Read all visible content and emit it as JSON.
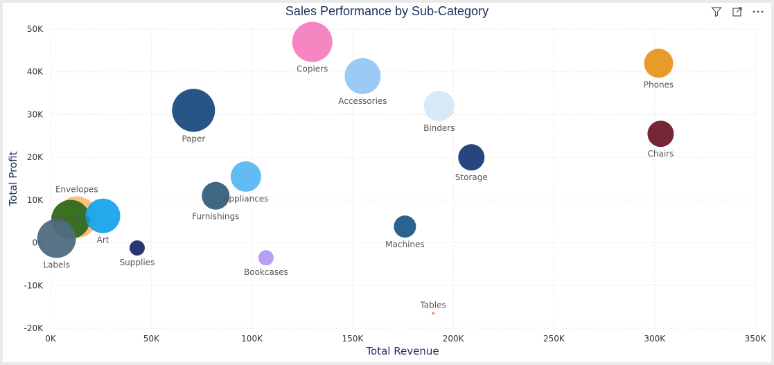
{
  "header": {
    "title": "Sales Performance by Sub-Category",
    "icons": [
      "filter-icon",
      "focus-mode-icon",
      "more-options-icon"
    ]
  },
  "chart_data": {
    "type": "scatter",
    "title": "Sales Performance by Sub-Category",
    "xlabel": "Total Revenue",
    "ylabel": "Total Profit",
    "xlim": [
      0,
      350000
    ],
    "ylim": [
      -20000,
      50000
    ],
    "xticks": [
      {
        "value": 0,
        "label": "0K"
      },
      {
        "value": 50000,
        "label": "50K"
      },
      {
        "value": 100000,
        "label": "100K"
      },
      {
        "value": 150000,
        "label": "150K"
      },
      {
        "value": 200000,
        "label": "200K"
      },
      {
        "value": 250000,
        "label": "250K"
      },
      {
        "value": 300000,
        "label": "300K"
      },
      {
        "value": 350000,
        "label": "350K"
      }
    ],
    "yticks": [
      {
        "value": 50000,
        "label": "50K"
      },
      {
        "value": 40000,
        "label": "40K"
      },
      {
        "value": 30000,
        "label": "30K"
      },
      {
        "value": 20000,
        "label": "20K"
      },
      {
        "value": 10000,
        "label": "10K"
      },
      {
        "value": 0,
        "label": "0K"
      },
      {
        "value": -10000,
        "label": "-10K"
      },
      {
        "value": -20000,
        "label": "-20K"
      }
    ],
    "grid": true,
    "legend": "none",
    "points": [
      {
        "name": "Copiers",
        "x": 130000,
        "y": 47000,
        "size": 29,
        "color": "#f47fbf",
        "label_pos": "below"
      },
      {
        "name": "Phones",
        "x": 302000,
        "y": 42000,
        "size": 21,
        "color": "#e8961f",
        "label_pos": "below"
      },
      {
        "name": "Accessories",
        "x": 155000,
        "y": 39000,
        "size": 26,
        "color": "#93c8f3",
        "label_pos": "below"
      },
      {
        "name": "Binders",
        "x": 193000,
        "y": 32000,
        "size": 22,
        "color": "#d6e8f8",
        "label_pos": "below"
      },
      {
        "name": "Paper",
        "x": 71000,
        "y": 31000,
        "size": 31,
        "color": "#1a4c80",
        "label_pos": "below"
      },
      {
        "name": "Chairs",
        "x": 303000,
        "y": 25500,
        "size": 19,
        "color": "#6b1b2d",
        "label_pos": "below"
      },
      {
        "name": "Storage",
        "x": 209000,
        "y": 20000,
        "size": 19,
        "color": "#1e3a78",
        "label_pos": "below"
      },
      {
        "name": "Appliances",
        "x": 97000,
        "y": 15500,
        "size": 22,
        "color": "#5ab8f2",
        "label_pos": "below"
      },
      {
        "name": "Furnishings",
        "x": 82000,
        "y": 11000,
        "size": 20,
        "color": "#365f7d",
        "label_pos": "below"
      },
      {
        "name": "Envelopes",
        "x": 13000,
        "y": 6000,
        "size": 30,
        "color": "#fbbc75",
        "label_pos": "above"
      },
      {
        "name": "Fasteners",
        "x": 10000,
        "y": 5500,
        "size": 28,
        "color": "#2e6b1d",
        "label_pos": "center"
      },
      {
        "name": "Art",
        "x": 26000,
        "y": 6300,
        "size": 25,
        "color": "#18a5eb",
        "label_pos": "below"
      },
      {
        "name": "Machines",
        "x": 176000,
        "y": 3800,
        "size": 16,
        "color": "#215a87",
        "label_pos": "below"
      },
      {
        "name": "Labels",
        "x": 3000,
        "y": 1000,
        "size": 28,
        "color": "#4f6b80",
        "label_pos": "below"
      },
      {
        "name": "Supplies",
        "x": 43000,
        "y": -1200,
        "size": 11,
        "color": "#1e2b68",
        "label_pos": "below"
      },
      {
        "name": "Bookcases",
        "x": 107000,
        "y": -3500,
        "size": 11,
        "color": "#b39bf2",
        "label_pos": "below"
      },
      {
        "name": "Tables",
        "x": 190000,
        "y": -16500,
        "size": 2,
        "color": "#f28b5c",
        "label_pos": "above"
      }
    ]
  }
}
